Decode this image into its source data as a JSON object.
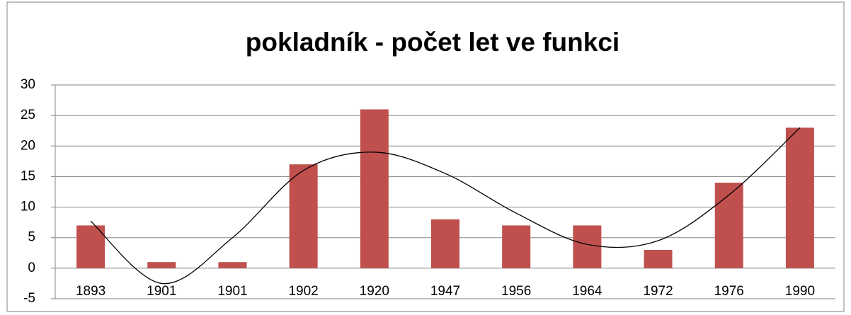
{
  "chart_data": {
    "type": "bar",
    "title": "pokladník - počet let ve funkci",
    "categories": [
      "1893",
      "1901",
      "1901",
      "1902",
      "1920",
      "1947",
      "1956",
      "1964",
      "1972",
      "1976",
      "1990"
    ],
    "values": [
      7,
      1,
      1,
      17,
      26,
      8,
      7,
      7,
      3,
      14,
      23
    ],
    "color": "#c0504d",
    "trendline": {
      "color": "#000000",
      "values": [
        7.7,
        -2.5,
        5,
        16,
        19,
        15.5,
        9,
        3.9,
        4.5,
        12,
        23
      ]
    },
    "ylim": [
      -5,
      30
    ],
    "yticks": [
      -5,
      0,
      5,
      10,
      15,
      20,
      25,
      30
    ],
    "grid": true
  }
}
